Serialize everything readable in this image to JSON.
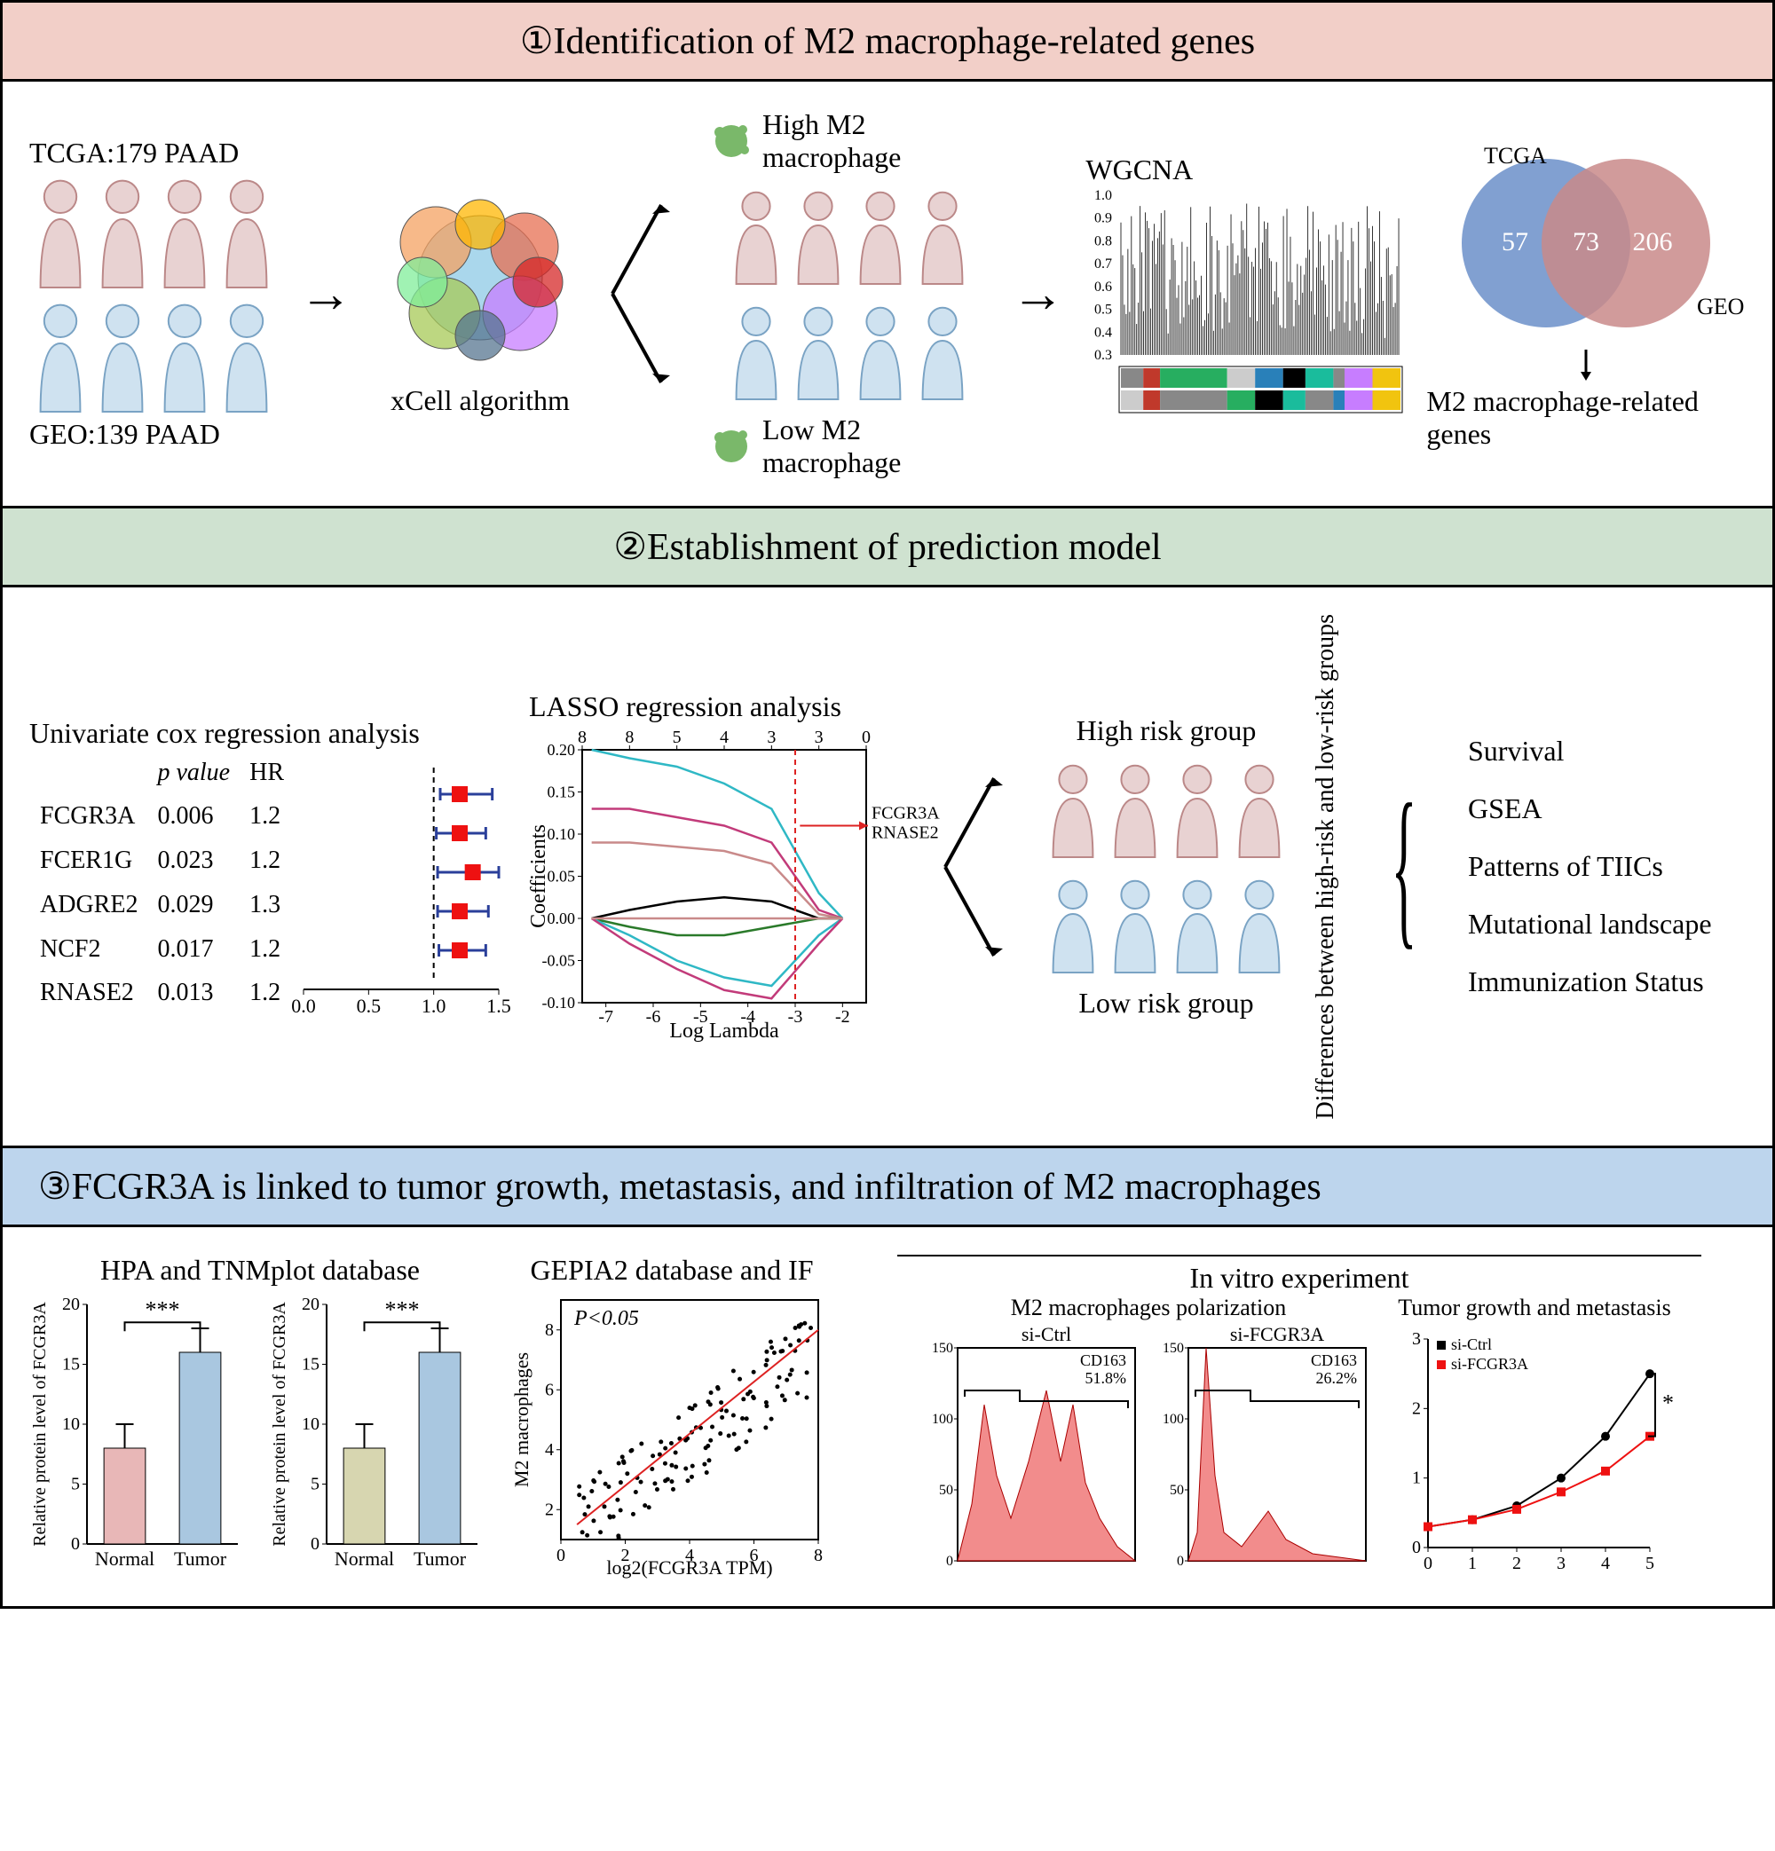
{
  "section1": {
    "title": "①Identification of M2 macrophage-related genes",
    "tcga_label": "TCGA:179 PAAD",
    "geo_label": "GEO:139 PAAD",
    "algorithm": "xCell algorithm",
    "high_m2": "High M2 macrophage",
    "low_m2": "Low M2 macrophage",
    "wgcna_label": "WGCNA",
    "wgcna_yticks": [
      "0.3",
      "0.4",
      "0.5",
      "0.6",
      "0.7",
      "0.8",
      "0.9",
      "1.0"
    ],
    "venn_left": "57",
    "venn_mid": "73",
    "venn_right": "206",
    "venn_tcga": "TCGA",
    "venn_geo": "GEO",
    "venn_out": "M2 macrophage-related genes",
    "colors": {
      "person_pink_fill": "#e8d2d2",
      "person_pink_stroke": "#b88",
      "person_blue_fill": "#cfe2f0",
      "person_blue_stroke": "#7aa3c4",
      "cell_colors": [
        "#8ecae6",
        "#f4a261",
        "#e76f51",
        "#a7c957",
        "#c77dff",
        "#ffb703",
        "#80ed99",
        "#d62828",
        "#577590"
      ],
      "venn_left": "#6b8fc9",
      "venn_right": "#c98a8a"
    }
  },
  "section2": {
    "title": "②Establishment of prediction model",
    "cox_title": "Univariate cox regression analysis",
    "forest": {
      "pval_hdr": "p value",
      "hr_hdr": "HR",
      "rows": [
        {
          "gene": "FCGR3A",
          "p": "0.006",
          "hr": "1.2",
          "lo": 1.05,
          "mid": 1.2,
          "hi": 1.45
        },
        {
          "gene": "FCER1G",
          "p": "0.023",
          "hr": "1.2",
          "lo": 1.02,
          "mid": 1.2,
          "hi": 1.4
        },
        {
          "gene": "ADGRE2",
          "p": "0.029",
          "hr": "1.3",
          "lo": 1.03,
          "mid": 1.3,
          "hi": 1.5
        },
        {
          "gene": "NCF2",
          "p": "0.017",
          "hr": "1.2",
          "lo": 1.03,
          "mid": 1.2,
          "hi": 1.42
        },
        {
          "gene": "RNASE2",
          "p": "0.013",
          "hr": "1.2",
          "lo": 1.04,
          "mid": 1.2,
          "hi": 1.4
        }
      ],
      "xticks": [
        "0.0",
        "0.5",
        "1.0",
        "1.5"
      ],
      "marker_color": "#e11",
      "ci_color": "#2a3f9a"
    },
    "lasso_title": "LASSO regression analysis",
    "lasso": {
      "top_ticks": [
        "8",
        "8",
        "5",
        "4",
        "3",
        "3",
        "0"
      ],
      "ylabel": "Coefficients",
      "yticks": [
        "-0.10",
        "-0.05",
        "0.00",
        "0.05",
        "0.10",
        "0.15",
        "0.20"
      ],
      "xlabel": "Log Lambda",
      "xticks": [
        "-7",
        "-6",
        "-5",
        "-4",
        "-3",
        "-2"
      ],
      "annot": "FCGR3A\nRNASE2",
      "line_colors": [
        "#2fb8c5",
        "#c23b7a",
        "#c98a8a",
        "#000",
        "#2a7a2a",
        "#2fb8c5",
        "#c23b7a",
        "#c98a8a"
      ],
      "vline_x": -3,
      "vline_color": "#d22"
    },
    "high_risk": "High risk group",
    "low_risk": "Low risk group",
    "diff_label": "Differences between high-risk\nand low-risk groups",
    "outcomes": [
      "Survival",
      "GSEA",
      "Patterns of TIICs",
      "Mutational landscape",
      "Immunization Status"
    ]
  },
  "section3": {
    "title": "③FCGR3A is linked to tumor growth, metastasis, and infiltration of M2 macrophages",
    "panelA": {
      "title": "HPA and TNMplot database",
      "ylab": "Relative protein level of FCGR3A",
      "yticks": [
        "0",
        "5",
        "10",
        "15",
        "20"
      ],
      "bars1": {
        "Normal": 8,
        "Tumor": 16,
        "err": 2,
        "colors": [
          "#e8b7b7",
          "#a9c7e0"
        ]
      },
      "bars2": {
        "Normal": 8,
        "Tumor": 16,
        "err": 2,
        "colors": [
          "#d7d6b0",
          "#a9c7e0"
        ]
      },
      "sig": "***"
    },
    "panelB": {
      "title": "GEPIA2 database and IF",
      "xlab": "log2(FCGR3A TPM)",
      "ylab": "M2 macrophages",
      "xticks": [
        "0",
        "2",
        "4",
        "6",
        "8"
      ],
      "yticks": [
        "2",
        "4",
        "6",
        "8"
      ],
      "pval": "P<0.05",
      "line_color": "#d22"
    },
    "panelC": {
      "title": "In vitro experiment",
      "sub1": "M2 macrophages polarization",
      "flow_yticks": [
        "0",
        "50",
        "100",
        "150"
      ],
      "flow1": {
        "label": "si-Ctrl",
        "marker": "CD163",
        "pct": "51.8%",
        "fill": "#f07878"
      },
      "flow2": {
        "label": "si-FCGR3A",
        "marker": "CD163",
        "pct": "26.2%",
        "fill": "#f07878"
      },
      "sub2": "Tumor growth and metastasis",
      "growth": {
        "legend": [
          "si-Ctrl",
          "si-FCGR3A"
        ],
        "legend_colors": [
          "#000",
          "#e11"
        ],
        "xticks": [
          "0",
          "1",
          "2",
          "3",
          "4",
          "5"
        ],
        "yticks": [
          "0",
          "1",
          "2",
          "3"
        ],
        "series1": [
          0.3,
          0.4,
          0.6,
          1.0,
          1.6,
          2.5
        ],
        "series2": [
          0.3,
          0.4,
          0.55,
          0.8,
          1.1,
          1.6
        ],
        "sig": "*"
      }
    }
  }
}
